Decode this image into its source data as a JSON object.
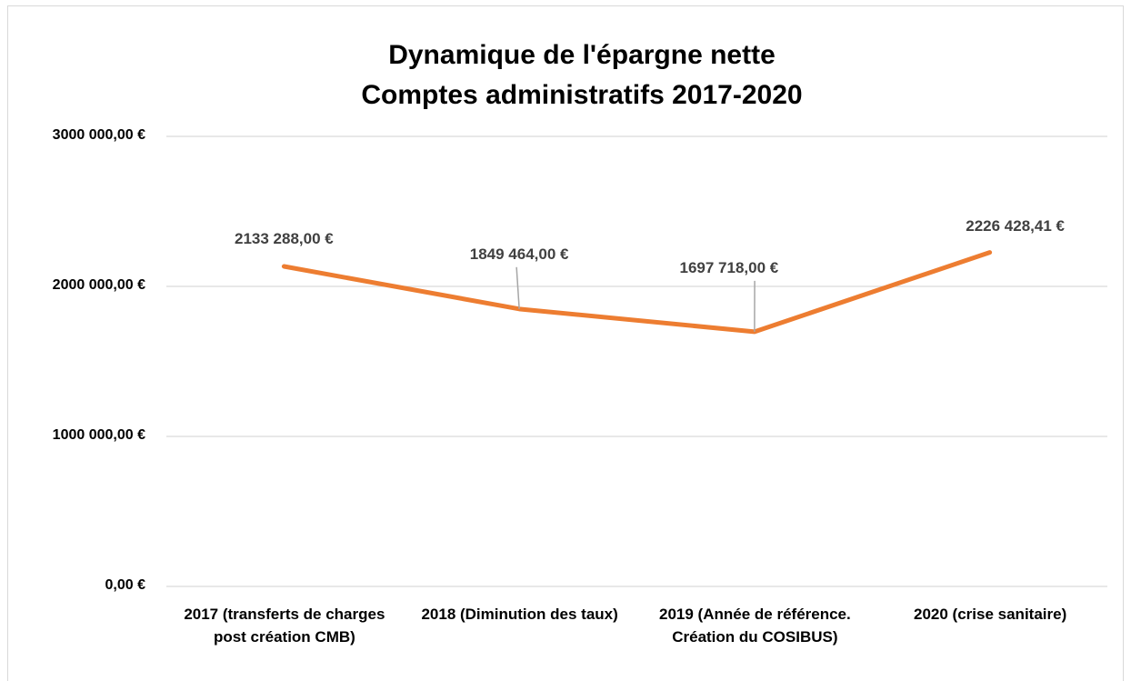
{
  "chart_data": {
    "type": "line",
    "title": "Dynamique de l'épargne nette",
    "subtitle": "Comptes administratifs 2017-2020",
    "categories": [
      "2017 (transferts de charges post création CMB)",
      "2018 (Diminution des taux)",
      "2019 (Année de référence. Création du COSIBUS)",
      "2020 (crise sanitaire)"
    ],
    "values": [
      2133288,
      1849464,
      1697718,
      2226428.41
    ],
    "value_labels": [
      "2133 288,00 €",
      "1849 464,00 €",
      "1697 718,00 €",
      "2226 428,41 €"
    ],
    "color": "#ed7d31",
    "ylim": [
      0,
      3000000
    ],
    "yticks": [
      {
        "value": 0,
        "label": "0,00 €"
      },
      {
        "value": 1000000,
        "label": "1000 000,00 €"
      },
      {
        "value": 2000000,
        "label": "2000 000,00 €"
      },
      {
        "value": 3000000,
        "label": "3000 000,00 €"
      }
    ],
    "grid": true
  }
}
